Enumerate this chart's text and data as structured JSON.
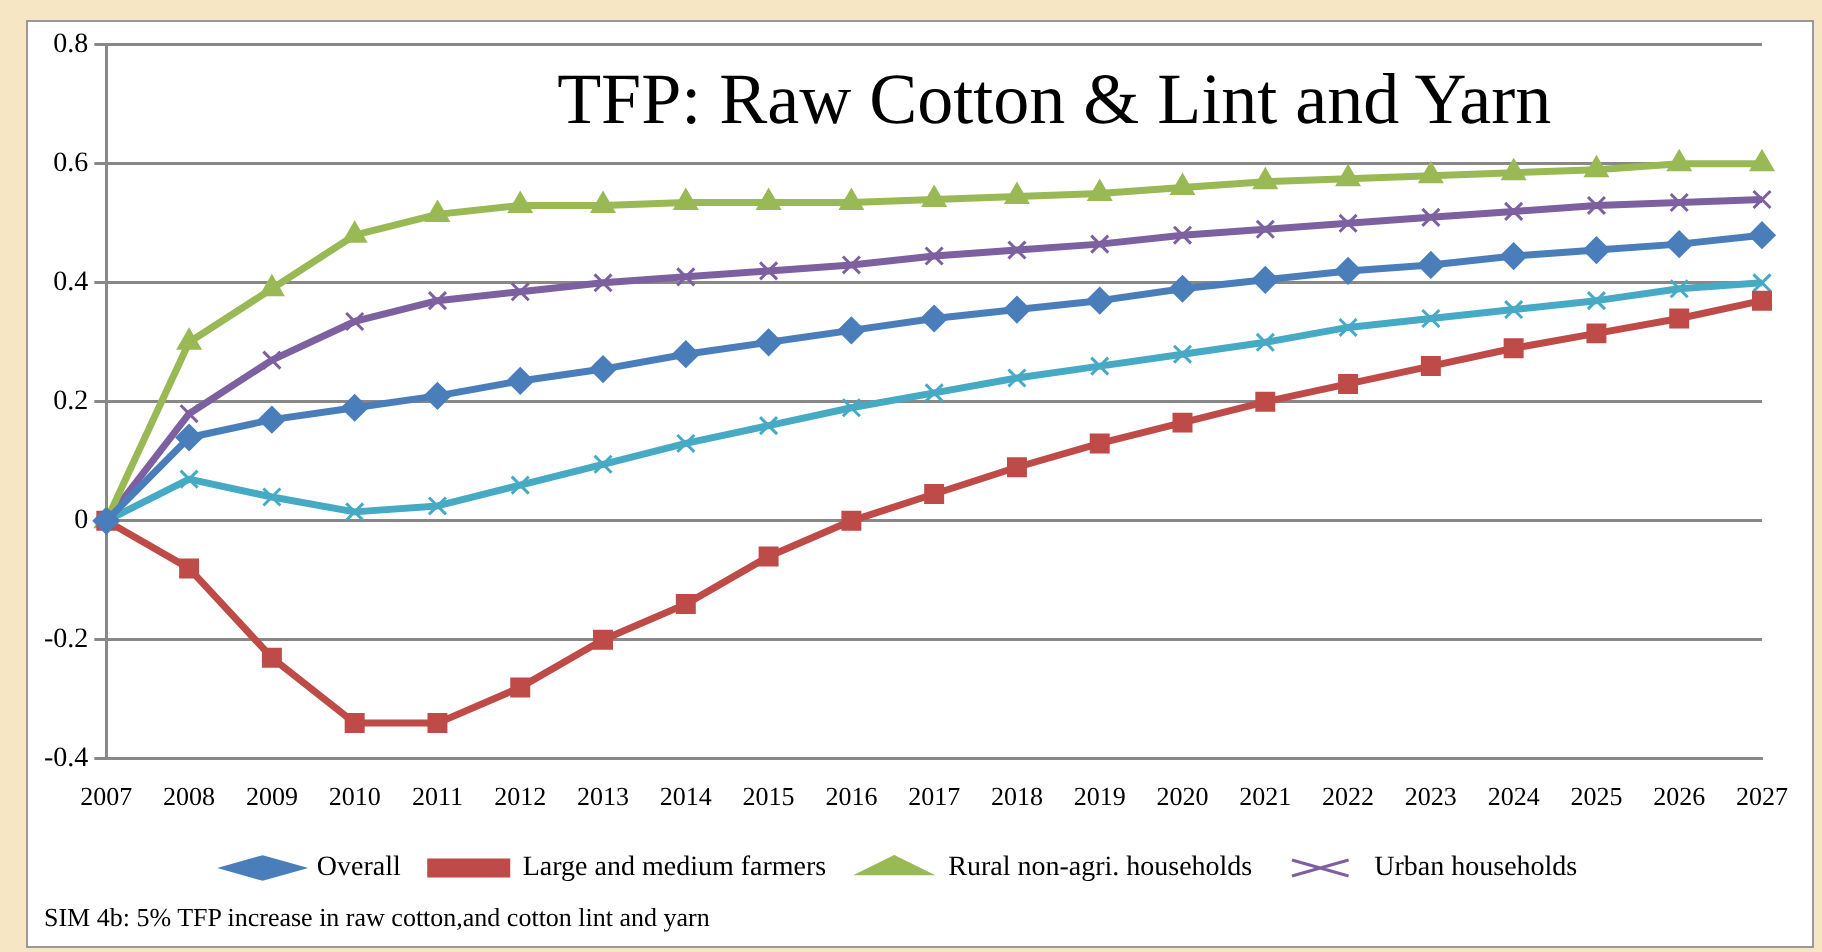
{
  "chart_data": {
    "type": "line",
    "title": "TFP: Raw Cotton & Lint and Yarn",
    "categories": [
      "2007",
      "2008",
      "2009",
      "2010",
      "2011",
      "2012",
      "2013",
      "2014",
      "2015",
      "2016",
      "2017",
      "2018",
      "2019",
      "2020",
      "2021",
      "2022",
      "2023",
      "2024",
      "2025",
      "2026",
      "2027"
    ],
    "series": [
      {
        "name": "Overall",
        "color": "#4a7ebb",
        "marker": "diamond",
        "values": [
          0,
          0.14,
          0.17,
          0.19,
          0.21,
          0.235,
          0.255,
          0.28,
          0.3,
          0.32,
          0.34,
          0.355,
          0.37,
          0.39,
          0.405,
          0.42,
          0.43,
          0.445,
          0.455,
          0.465,
          0.48
        ]
      },
      {
        "name": "Large and medium farmers",
        "color": "#be4b48",
        "marker": "square",
        "values": [
          0,
          -0.08,
          -0.23,
          -0.34,
          -0.34,
          -0.28,
          -0.2,
          -0.14,
          -0.06,
          0,
          0.045,
          0.09,
          0.13,
          0.165,
          0.2,
          0.23,
          0.26,
          0.29,
          0.315,
          0.34,
          0.37
        ]
      },
      {
        "name": "Rural non-agri. households",
        "color": "#98b954",
        "marker": "triangle",
        "values": [
          0,
          0.3,
          0.39,
          0.48,
          0.515,
          0.53,
          0.53,
          0.535,
          0.535,
          0.535,
          0.54,
          0.545,
          0.55,
          0.56,
          0.57,
          0.575,
          0.58,
          0.585,
          0.59,
          0.6,
          0.6
        ]
      },
      {
        "name": "Urban households",
        "color": "#7d60a0",
        "marker": "cross",
        "values": [
          0,
          0.18,
          0.27,
          0.335,
          0.37,
          0.385,
          0.4,
          0.41,
          0.42,
          0.43,
          0.445,
          0.455,
          0.465,
          0.48,
          0.49,
          0.5,
          0.51,
          0.52,
          0.53,
          0.535,
          0.54
        ]
      },
      {
        "color": "#46aac5",
        "marker": "cross",
        "values": [
          0,
          0.07,
          0.04,
          0.015,
          0.025,
          0.06,
          0.095,
          0.13,
          0.16,
          0.19,
          0.215,
          0.24,
          0.26,
          0.28,
          0.3,
          0.325,
          0.34,
          0.355,
          0.37,
          0.39,
          0.4
        ]
      }
    ],
    "ylim": [
      -0.4,
      0.8
    ],
    "yticks": [
      -0.4,
      -0.2,
      0,
      0.2,
      0.4,
      0.6,
      0.8
    ],
    "grid": "y",
    "legend": "bottom",
    "annotations": [
      "SIM 4b: 5% TFP increase in raw cotton,and cotton lint and yarn"
    ]
  }
}
